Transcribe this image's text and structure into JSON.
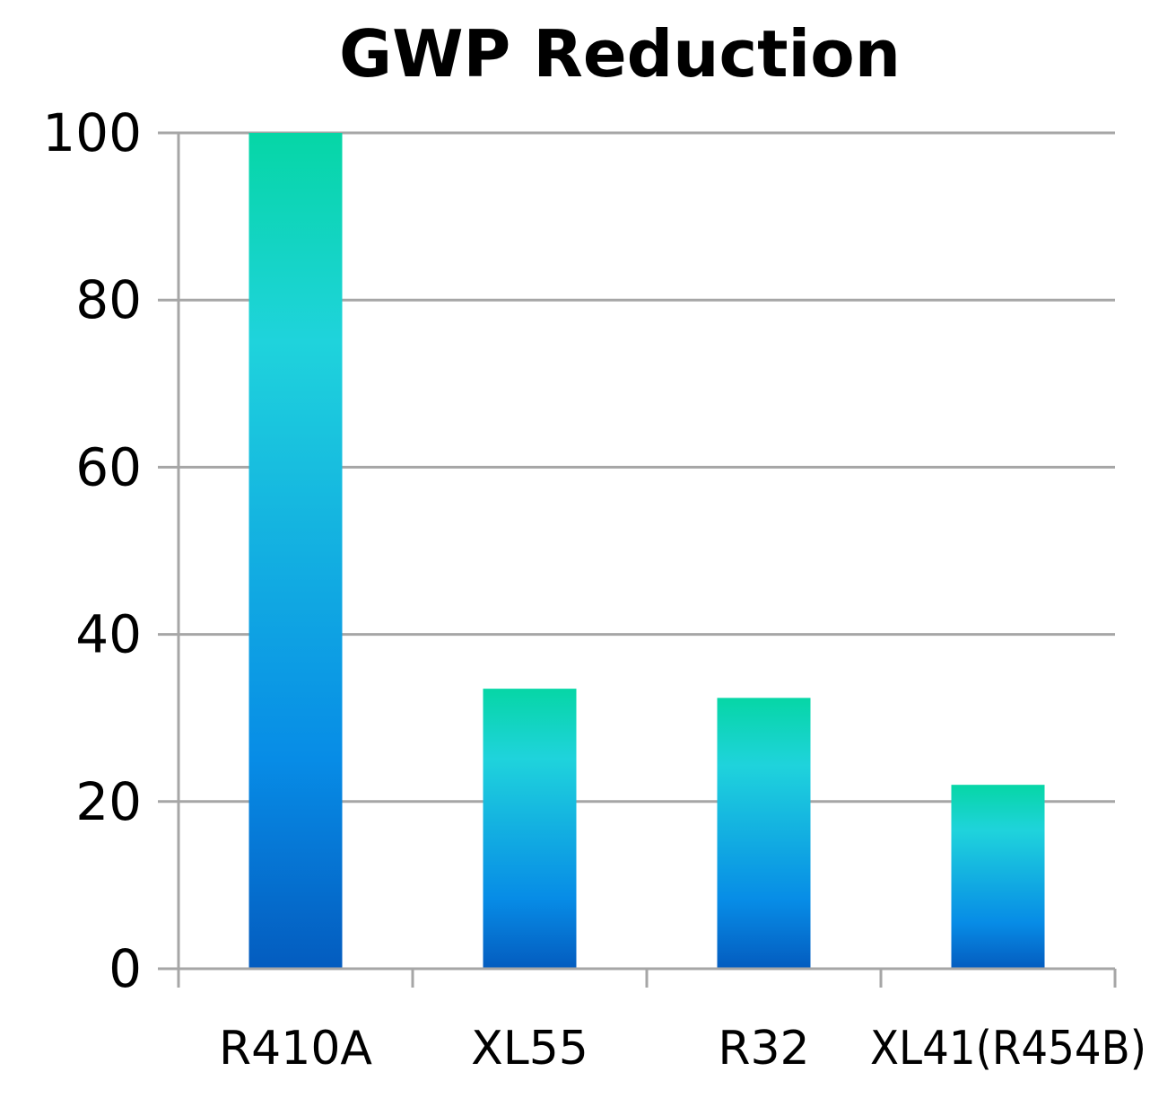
{
  "chart_data": {
    "type": "bar",
    "title": "GWP Reduction",
    "xlabel": "",
    "ylabel": "",
    "categories": [
      "R410A",
      "XL55",
      "R32",
      "XL41(R454B)"
    ],
    "values": [
      100,
      33.5,
      32.4,
      22
    ],
    "ylim": [
      0,
      100
    ],
    "yticks": [
      0,
      20,
      40,
      60,
      80,
      100
    ],
    "grid": true,
    "legend": "none",
    "bar_gradient": {
      "top": "#06d6a6",
      "upper_mid": "#1fd3dc",
      "lower_mid": "#078ce6",
      "bottom": "#045cbf"
    },
    "axis_color": "#a6a6a6"
  }
}
